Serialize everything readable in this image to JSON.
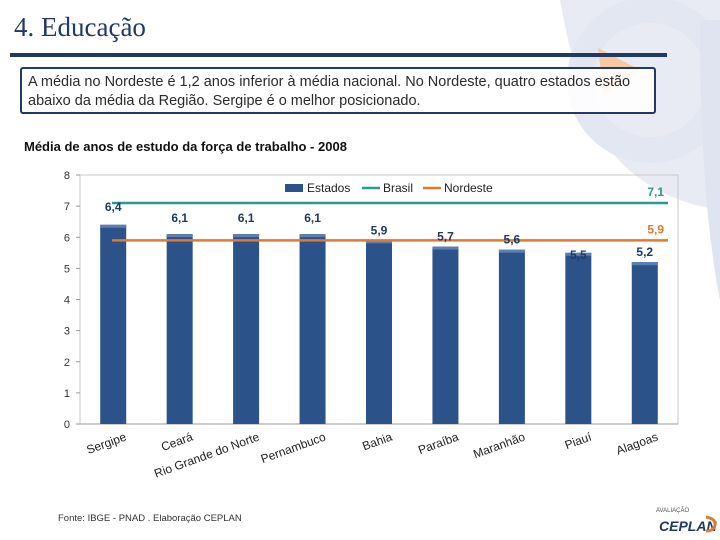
{
  "slide": {
    "title": "4. Educação",
    "callout": "A média no Nordeste é 1,2 anos inferior à média nacional. No Nordeste, quatro estados estão  abaixo da média da Região. Sergipe é o melhor posicionado.",
    "source": "Fonte: IBGE - PNAD . Elaboração CEPLAN"
  },
  "logo": {
    "sub": "AVALIAÇÃO",
    "text": "CEPLAN"
  },
  "colors": {
    "primary": "#1f3a66",
    "bar": "#2b5289",
    "brasil": "#2a9a8c",
    "nordeste": "#e07a2e",
    "deco_light": "#e3e7f2",
    "deco_orange": "#f7c9a0"
  },
  "chart_data": {
    "type": "bar",
    "title": "Média de anos de estudo da força de trabalho - 2008",
    "categories": [
      "Sergipe",
      "Ceará",
      "Rio Grande do Norte",
      "Pernambuco",
      "Bahia",
      "Paraíba",
      "Maranhão",
      "Piauí",
      "Alagoas"
    ],
    "series": [
      {
        "name": "Estados",
        "values": [
          6.4,
          6.1,
          6.1,
          6.1,
          5.9,
          5.7,
          5.6,
          5.5,
          5.2
        ],
        "labels": [
          "6,4",
          "6,1",
          "6,1",
          "6,1",
          "5,9",
          "5,7",
          "5,6",
          "5,5",
          "5,2"
        ]
      }
    ],
    "reference_lines": [
      {
        "name": "Brasil",
        "value": 7.1,
        "label": "7,1"
      },
      {
        "name": "Nordeste",
        "value": 5.9,
        "label": "5,9"
      }
    ],
    "yticks": [
      "0",
      "1",
      "2",
      "3",
      "4",
      "5",
      "6",
      "7",
      "8"
    ],
    "ylim": [
      0,
      8
    ],
    "xlabel": "",
    "ylabel": "",
    "legend_position": "top-right",
    "grid": false
  }
}
